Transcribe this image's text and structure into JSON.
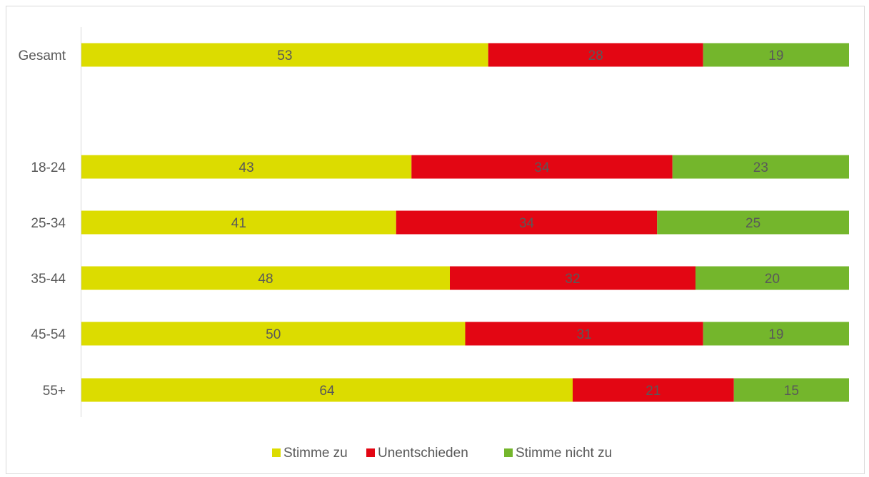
{
  "chart_data": {
    "type": "bar",
    "orientation": "horizontal",
    "stacked": true,
    "normalized_percent": true,
    "categories": [
      "Gesamt",
      "18-24",
      "25-34",
      "35-44",
      "45-54",
      "55+"
    ],
    "series": [
      {
        "name": "Stimme zu",
        "color": "#dcdc00",
        "values": [
          53,
          43,
          41,
          48,
          50,
          64
        ]
      },
      {
        "name": "Unentschieden",
        "color": "#e30613",
        "values": [
          28,
          34,
          34,
          32,
          31,
          21
        ]
      },
      {
        "name": "Stimme nicht zu",
        "color": "#74b62c",
        "values": [
          19,
          23,
          25,
          20,
          19,
          15
        ]
      }
    ],
    "xlim": [
      0,
      100
    ],
    "grid": false,
    "data_labels": true,
    "legend_position": "bottom",
    "gap_after_first_category": true
  }
}
